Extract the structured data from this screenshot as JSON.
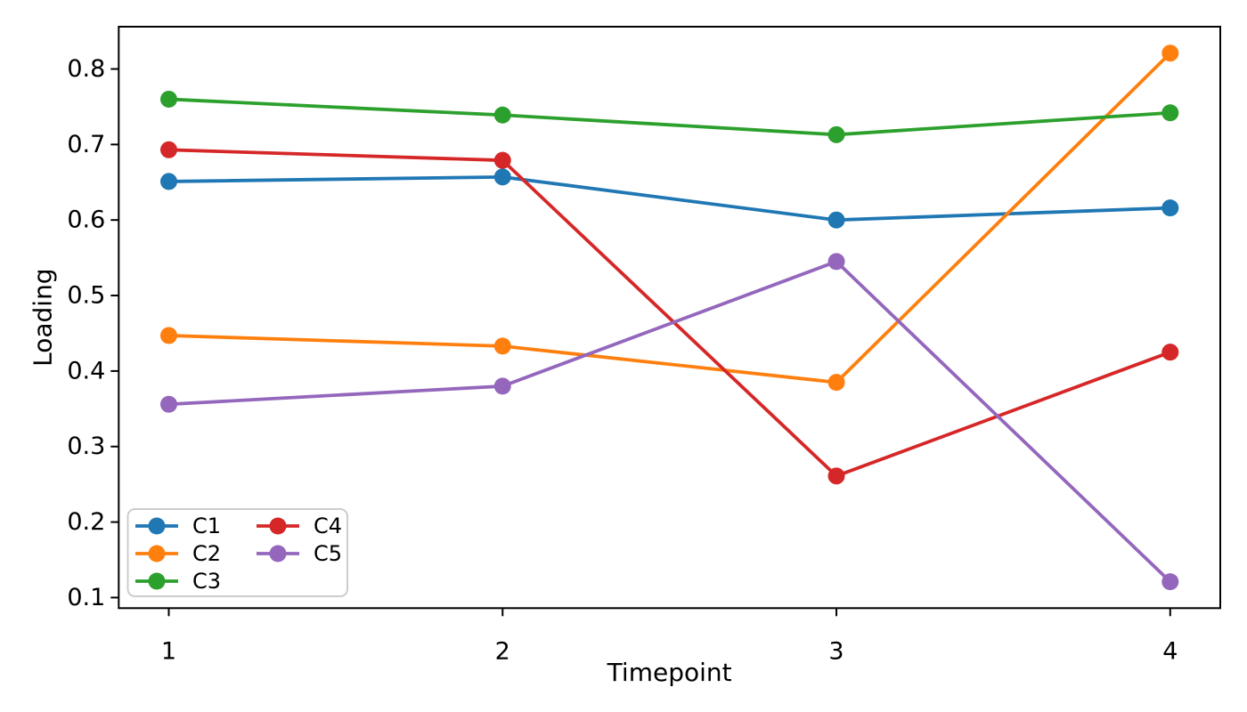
{
  "figure": {
    "background": "#ffffff",
    "spine_color": "#000000"
  },
  "chart_data": {
    "type": "line",
    "title": "",
    "xlabel": "Timepoint",
    "ylabel": "Loading",
    "x": [
      1,
      2,
      3,
      4
    ],
    "xticks": [
      "1",
      "2",
      "3",
      "4"
    ],
    "yticks": [
      0.1,
      0.2,
      0.3,
      0.4,
      0.5,
      0.6,
      0.7,
      0.8
    ],
    "xlim": [
      0.85,
      4.15
    ],
    "ylim": [
      0.086,
      0.856
    ],
    "grid": false,
    "legend": {
      "position": "lower left",
      "columns": 2,
      "column_assignment": [
        [
          0,
          1,
          2
        ],
        [
          3,
          4
        ]
      ],
      "border_color": "#cccccc",
      "background": "#ffffff"
    },
    "series": [
      {
        "name": "C1",
        "color": "#1f77b4",
        "values": [
          0.651,
          0.657,
          0.6,
          0.616
        ]
      },
      {
        "name": "C2",
        "color": "#ff7f0e",
        "values": [
          0.447,
          0.433,
          0.385,
          0.821
        ]
      },
      {
        "name": "C3",
        "color": "#2ca02c",
        "values": [
          0.76,
          0.739,
          0.713,
          0.742
        ]
      },
      {
        "name": "C4",
        "color": "#d62728",
        "values": [
          0.693,
          0.679,
          0.261,
          0.425
        ]
      },
      {
        "name": "C5",
        "color": "#9467bd",
        "values": [
          0.356,
          0.38,
          0.545,
          0.121
        ]
      }
    ],
    "marker": "circle"
  }
}
